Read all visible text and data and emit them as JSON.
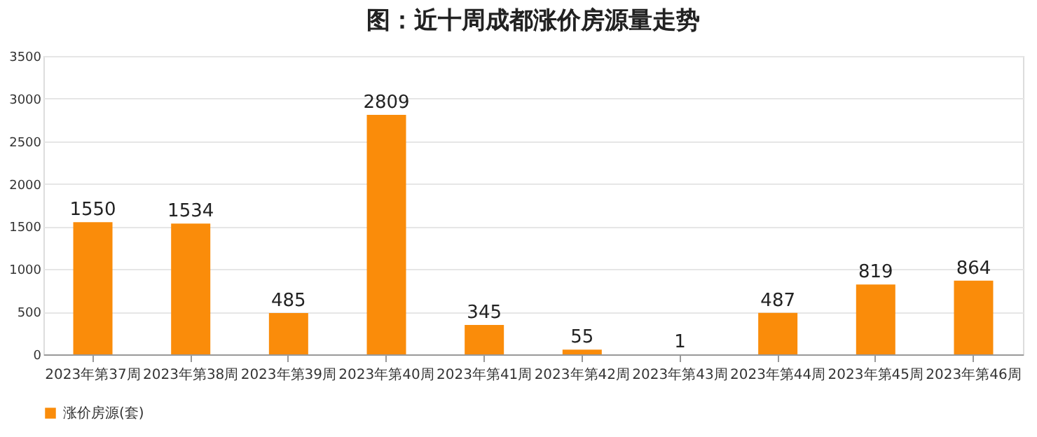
{
  "chart_data": {
    "type": "bar",
    "title": "图：近十周成都涨价房源量走势",
    "categories": [
      "2023年第37周",
      "2023年第38周",
      "2023年第39周",
      "2023年第40周",
      "2023年第41周",
      "2023年第42周",
      "2023年第43周",
      "2023年第44周",
      "2023年第45周",
      "2023年第46周"
    ],
    "series": [
      {
        "name": "涨价房源(套)",
        "color": "#fa8c0a",
        "values": [
          1550,
          1534,
          485,
          2809,
          345,
          55,
          1,
          487,
          819,
          864
        ]
      }
    ],
    "ylim": [
      0,
      3500
    ],
    "yticks": [
      0,
      500,
      1000,
      1500,
      2000,
      2500,
      3000,
      3500
    ],
    "grid": "y",
    "legend": "bottom",
    "data_labels": true
  }
}
